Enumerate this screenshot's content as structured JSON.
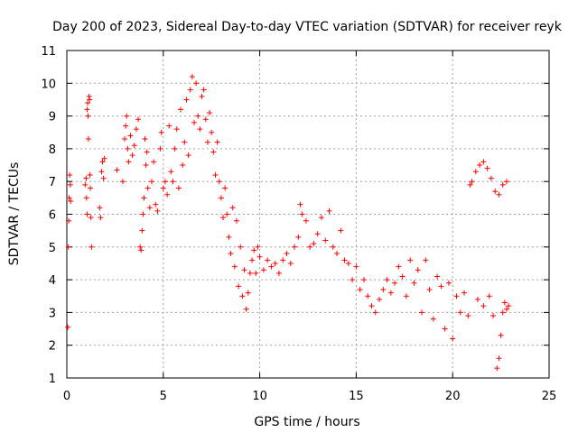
{
  "chart_data": {
    "type": "scatter",
    "title": "Day 200 of 2023, Sidereal Day-to-day VTEC variation (SDTVAR) for receiver reyk",
    "xlabel": "GPS time / hours",
    "ylabel": "SDTVAR / TECUs",
    "xlim": [
      0,
      25
    ],
    "ylim": [
      1,
      11
    ],
    "xticks": [
      0,
      5,
      10,
      15,
      20,
      25
    ],
    "yticks": [
      1,
      2,
      3,
      4,
      5,
      6,
      7,
      8,
      9,
      10,
      11
    ],
    "grid": true,
    "marker": "+",
    "series": [
      {
        "name": "SDTVAR",
        "color": "#ff0000",
        "points": [
          [
            0.05,
            2.55
          ],
          [
            0.08,
            5.0
          ],
          [
            0.1,
            5.8
          ],
          [
            0.12,
            6.5
          ],
          [
            0.15,
            7.2
          ],
          [
            0.18,
            6.9
          ],
          [
            0.2,
            6.4
          ],
          [
            0.95,
            6.9
          ],
          [
            1.0,
            7.1
          ],
          [
            1.02,
            6.5
          ],
          [
            1.05,
            6.0
          ],
          [
            1.05,
            9.2
          ],
          [
            1.08,
            9.4
          ],
          [
            1.1,
            9.0
          ],
          [
            1.12,
            8.3
          ],
          [
            1.15,
            9.6
          ],
          [
            1.18,
            9.5
          ],
          [
            1.2,
            7.2
          ],
          [
            1.22,
            6.8
          ],
          [
            1.25,
            5.9
          ],
          [
            1.28,
            5.0
          ],
          [
            1.7,
            6.2
          ],
          [
            1.75,
            5.9
          ],
          [
            1.8,
            7.3
          ],
          [
            1.85,
            7.6
          ],
          [
            1.9,
            7.1
          ],
          [
            1.95,
            7.7
          ],
          [
            2.6,
            7.35
          ],
          [
            2.9,
            7.0
          ],
          [
            3.0,
            8.3
          ],
          [
            3.05,
            8.7
          ],
          [
            3.1,
            9.0
          ],
          [
            3.15,
            8.0
          ],
          [
            3.2,
            7.6
          ],
          [
            3.3,
            8.4
          ],
          [
            3.4,
            7.8
          ],
          [
            3.5,
            8.1
          ],
          [
            3.6,
            8.6
          ],
          [
            3.7,
            8.9
          ],
          [
            3.8,
            5.0
          ],
          [
            3.85,
            4.9
          ],
          [
            3.9,
            5.5
          ],
          [
            3.95,
            6.0
          ],
          [
            4.0,
            6.5
          ],
          [
            4.05,
            8.3
          ],
          [
            4.1,
            7.5
          ],
          [
            4.15,
            7.9
          ],
          [
            4.2,
            6.8
          ],
          [
            4.3,
            6.2
          ],
          [
            4.4,
            7.0
          ],
          [
            4.5,
            7.6
          ],
          [
            4.6,
            6.3
          ],
          [
            4.7,
            6.1
          ],
          [
            4.85,
            8.0
          ],
          [
            4.9,
            8.5
          ],
          [
            5.0,
            6.8
          ],
          [
            5.1,
            7.0
          ],
          [
            5.2,
            6.6
          ],
          [
            5.3,
            8.7
          ],
          [
            5.4,
            7.3
          ],
          [
            5.5,
            7.0
          ],
          [
            5.6,
            8.0
          ],
          [
            5.7,
            8.6
          ],
          [
            5.8,
            6.8
          ],
          [
            5.9,
            9.2
          ],
          [
            6.0,
            7.5
          ],
          [
            6.1,
            8.2
          ],
          [
            6.2,
            9.5
          ],
          [
            6.3,
            7.8
          ],
          [
            6.4,
            9.8
          ],
          [
            6.5,
            10.2
          ],
          [
            6.6,
            8.8
          ],
          [
            6.7,
            10.0
          ],
          [
            6.8,
            9.0
          ],
          [
            6.9,
            8.6
          ],
          [
            7.0,
            9.6
          ],
          [
            7.1,
            9.8
          ],
          [
            7.2,
            8.9
          ],
          [
            7.3,
            8.2
          ],
          [
            7.4,
            9.1
          ],
          [
            7.5,
            8.5
          ],
          [
            7.6,
            7.9
          ],
          [
            7.7,
            7.2
          ],
          [
            7.8,
            8.2
          ],
          [
            7.9,
            7.0
          ],
          [
            8.0,
            6.5
          ],
          [
            8.1,
            5.9
          ],
          [
            8.2,
            6.8
          ],
          [
            8.3,
            6.0
          ],
          [
            8.4,
            5.3
          ],
          [
            8.5,
            4.8
          ],
          [
            8.6,
            6.2
          ],
          [
            8.7,
            4.4
          ],
          [
            8.8,
            5.8
          ],
          [
            8.9,
            3.8
          ],
          [
            9.0,
            5.0
          ],
          [
            9.1,
            3.5
          ],
          [
            9.2,
            4.3
          ],
          [
            9.3,
            3.1
          ],
          [
            9.4,
            3.6
          ],
          [
            9.5,
            4.2
          ],
          [
            9.6,
            4.6
          ],
          [
            9.7,
            4.9
          ],
          [
            9.8,
            4.2
          ],
          [
            9.9,
            5.0
          ],
          [
            10.0,
            4.7
          ],
          [
            10.2,
            4.3
          ],
          [
            10.4,
            4.6
          ],
          [
            10.6,
            4.4
          ],
          [
            10.8,
            4.5
          ],
          [
            11.0,
            4.2
          ],
          [
            11.2,
            4.6
          ],
          [
            11.4,
            4.8
          ],
          [
            11.6,
            4.5
          ],
          [
            11.8,
            5.0
          ],
          [
            12.0,
            5.3
          ],
          [
            12.1,
            6.3
          ],
          [
            12.2,
            6.0
          ],
          [
            12.4,
            5.8
          ],
          [
            12.6,
            5.0
          ],
          [
            12.8,
            5.1
          ],
          [
            13.0,
            5.4
          ],
          [
            13.2,
            5.9
          ],
          [
            13.4,
            5.2
          ],
          [
            13.6,
            6.1
          ],
          [
            13.8,
            5.0
          ],
          [
            14.0,
            4.8
          ],
          [
            14.2,
            5.5
          ],
          [
            14.4,
            4.6
          ],
          [
            14.6,
            4.5
          ],
          [
            14.8,
            4.0
          ],
          [
            15.0,
            4.4
          ],
          [
            15.2,
            3.7
          ],
          [
            15.4,
            4.0
          ],
          [
            15.6,
            3.5
          ],
          [
            15.8,
            3.2
          ],
          [
            16.0,
            3.0
          ],
          [
            16.2,
            3.4
          ],
          [
            16.4,
            3.7
          ],
          [
            16.6,
            4.0
          ],
          [
            16.8,
            3.6
          ],
          [
            17.0,
            3.9
          ],
          [
            17.2,
            4.4
          ],
          [
            17.4,
            4.1
          ],
          [
            17.6,
            3.5
          ],
          [
            17.8,
            4.6
          ],
          [
            18.0,
            3.9
          ],
          [
            18.2,
            4.3
          ],
          [
            18.4,
            3.0
          ],
          [
            18.6,
            4.6
          ],
          [
            18.8,
            3.7
          ],
          [
            19.0,
            2.8
          ],
          [
            19.2,
            4.1
          ],
          [
            19.4,
            3.8
          ],
          [
            19.6,
            2.5
          ],
          [
            19.8,
            3.9
          ],
          [
            20.0,
            2.2
          ],
          [
            20.2,
            3.5
          ],
          [
            20.4,
            3.0
          ],
          [
            20.6,
            3.6
          ],
          [
            20.8,
            2.9
          ],
          [
            20.9,
            6.9
          ],
          [
            21.0,
            7.0
          ],
          [
            21.2,
            7.3
          ],
          [
            21.4,
            7.5
          ],
          [
            21.6,
            7.6
          ],
          [
            21.8,
            7.4
          ],
          [
            22.0,
            7.1
          ],
          [
            22.2,
            6.7
          ],
          [
            22.4,
            6.6
          ],
          [
            22.6,
            6.9
          ],
          [
            22.8,
            7.0
          ],
          [
            21.3,
            3.4
          ],
          [
            21.6,
            3.2
          ],
          [
            21.9,
            3.5
          ],
          [
            22.1,
            2.9
          ],
          [
            22.3,
            1.3
          ],
          [
            22.4,
            1.6
          ],
          [
            22.5,
            2.3
          ],
          [
            22.6,
            3.0
          ],
          [
            22.7,
            3.3
          ],
          [
            22.8,
            3.1
          ],
          [
            22.9,
            3.2
          ]
        ]
      }
    ]
  }
}
